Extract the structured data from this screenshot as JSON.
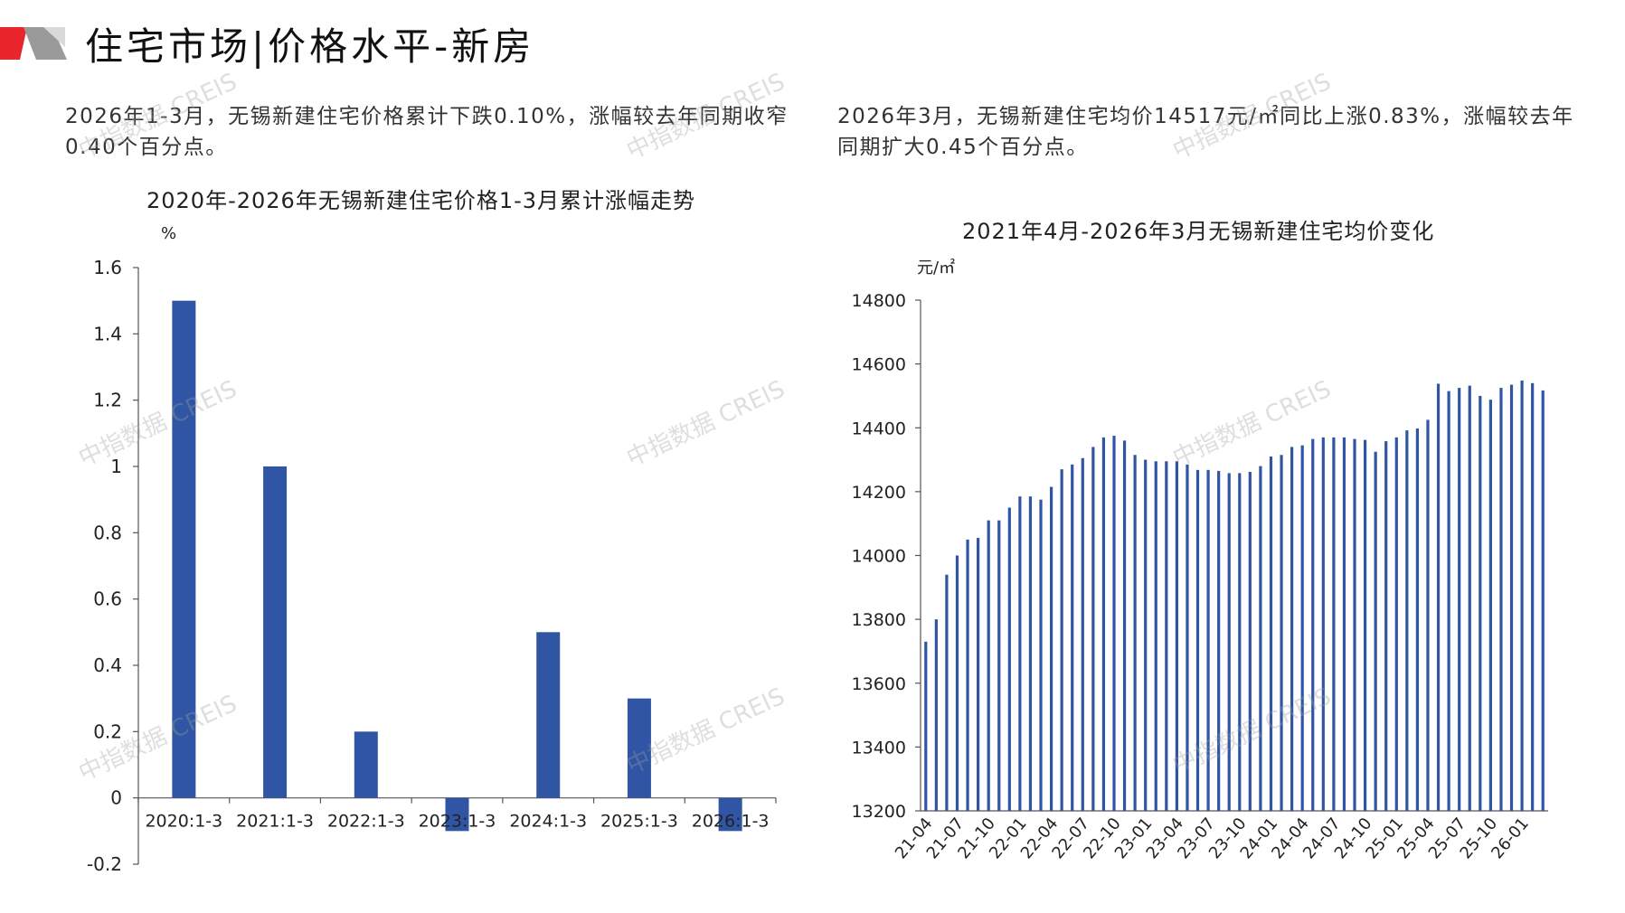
{
  "header": {
    "title": "住宅市场|价格水平-新房"
  },
  "summary": {
    "left": "2026年1-3月，无锡新建住宅价格累计下跌0.10%，涨幅较去年同期收窄0.40个百分点。",
    "right": "2026年3月，无锡新建住宅均价14517元/㎡同比上涨0.83%，涨幅较去年同期扩大0.45个百分点。"
  },
  "watermark": "中指数据 CREIS",
  "colors": {
    "bar": "#2f55a4",
    "accent_red": "#e8262b",
    "accent_gray": "#8c8c8c"
  },
  "chart_data": [
    {
      "type": "bar",
      "title": "2020年-2026年无锡新建住宅价格1-3月累计涨幅走势",
      "ylabel": "%",
      "categories": [
        "2020:1-3",
        "2021:1-3",
        "2022:1-3",
        "2023:1-3",
        "2024:1-3",
        "2025:1-3",
        "2026:1-3"
      ],
      "values": [
        1.5,
        1.0,
        0.2,
        -0.1,
        0.5,
        0.3,
        -0.1
      ],
      "ylim": [
        -0.2,
        1.6
      ],
      "yticks": [
        "-0.2",
        "0",
        "0.2",
        "0.4",
        "0.6",
        "0.8",
        "1",
        "1.2",
        "1.4",
        "1.6"
      ],
      "grid": false
    },
    {
      "type": "bar",
      "title": "2021年4月-2026年3月无锡新建住宅均价变化",
      "ylabel": "元/㎡",
      "x_start": "2021-04",
      "xticks": [
        "21-04",
        "21-07",
        "21-10",
        "22-01",
        "22-04",
        "22-07",
        "22-10",
        "23-01",
        "23-04",
        "23-07",
        "23-10",
        "24-01",
        "24-04",
        "24-07",
        "24-10",
        "25-01",
        "25-04",
        "25-07",
        "25-10",
        "26-01"
      ],
      "values": [
        13730,
        13800,
        13940,
        14000,
        14050,
        14055,
        14110,
        14110,
        14150,
        14185,
        14185,
        14175,
        14215,
        14270,
        14285,
        14305,
        14340,
        14370,
        14375,
        14360,
        14315,
        14300,
        14295,
        14295,
        14295,
        14285,
        14268,
        14268,
        14265,
        14258,
        14258,
        14262,
        14280,
        14310,
        14315,
        14340,
        14345,
        14365,
        14370,
        14370,
        14370,
        14365,
        14362,
        14325,
        14358,
        14370,
        14392,
        14398,
        14425,
        14538,
        14515,
        14525,
        14532,
        14500,
        14488,
        14525,
        14535,
        14548,
        14540,
        14517
      ],
      "ylim": [
        13200,
        14800
      ],
      "yticks": [
        "13200",
        "13400",
        "13600",
        "13800",
        "14000",
        "14200",
        "14400",
        "14600",
        "14800"
      ],
      "grid": false
    }
  ]
}
